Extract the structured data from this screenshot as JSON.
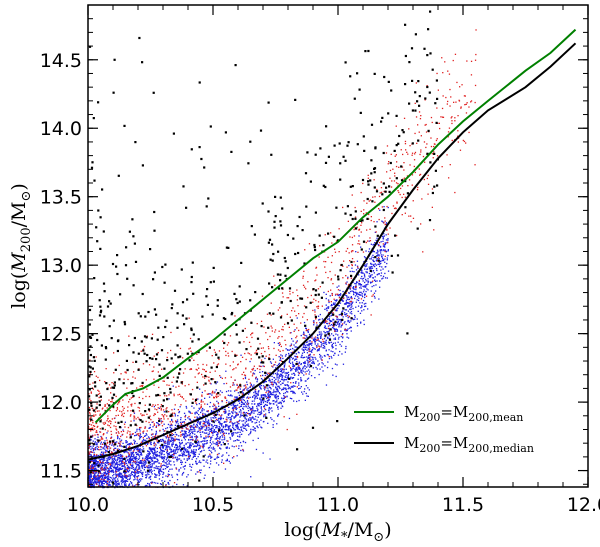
{
  "chart_data": {
    "type": "scatter",
    "xlabel": "log(M*/M⊙)",
    "ylabel": "log(M200/M⊙)",
    "xlim": [
      10.0,
      12.0
    ],
    "ylim": [
      11.38,
      14.9
    ],
    "x_ticks": [
      10.0,
      10.5,
      11.0,
      11.5,
      12.0
    ],
    "x_tick_labels": [
      "10.0",
      "10.5",
      "11.0",
      "11.5",
      "12.0"
    ],
    "y_ticks": [
      11.5,
      12.0,
      12.5,
      13.0,
      13.5,
      14.0,
      14.5
    ],
    "y_tick_labels": [
      "11.5",
      "12.0",
      "12.5",
      "13.0",
      "13.5",
      "14.0",
      "14.5"
    ],
    "grid": false,
    "legend_position": "lower-right",
    "series": [
      {
        "name": "M200=M200,mean",
        "kind": "line",
        "color": "#008000",
        "x": [
          10.03,
          10.1,
          10.15,
          10.22,
          10.3,
          10.4,
          10.5,
          10.6,
          10.7,
          10.8,
          10.9,
          11.0,
          11.1,
          11.2,
          11.3,
          11.4,
          11.5,
          11.6,
          11.75,
          11.85,
          11.95
        ],
        "y": [
          11.85,
          11.98,
          12.06,
          12.1,
          12.18,
          12.32,
          12.45,
          12.6,
          12.75,
          12.9,
          13.05,
          13.17,
          13.35,
          13.5,
          13.68,
          13.88,
          14.05,
          14.2,
          14.42,
          14.55,
          14.72
        ]
      },
      {
        "name": "M200=M200,median",
        "kind": "line",
        "color": "#000000",
        "x": [
          10.0,
          10.1,
          10.2,
          10.3,
          10.4,
          10.5,
          10.6,
          10.7,
          10.8,
          10.9,
          11.0,
          11.1,
          11.2,
          11.3,
          11.4,
          11.5,
          11.6,
          11.75,
          11.85,
          11.95
        ],
        "y": [
          11.58,
          11.62,
          11.68,
          11.76,
          11.84,
          11.92,
          12.02,
          12.15,
          12.32,
          12.5,
          12.72,
          13.0,
          13.3,
          13.55,
          13.78,
          13.97,
          14.13,
          14.3,
          14.45,
          14.62
        ]
      }
    ],
    "scatter_groups": [
      {
        "name": "blue points",
        "color": "#2020e0",
        "count": 4500,
        "x_range": [
          10.0,
          11.2
        ],
        "offset_from_median": -0.12,
        "scatter_sigma": 0.12
      },
      {
        "name": "red points",
        "color": "#e02020",
        "count": 1400,
        "x_range": [
          10.0,
          11.55
        ],
        "offset_from_median": 0.18,
        "scatter_sigma": 0.22
      },
      {
        "name": "black points",
        "color": "#000000",
        "count": 600,
        "x_range": [
          10.0,
          11.4
        ],
        "offset_from_median": 0.55,
        "scatter_sigma": 0.45
      }
    ]
  }
}
